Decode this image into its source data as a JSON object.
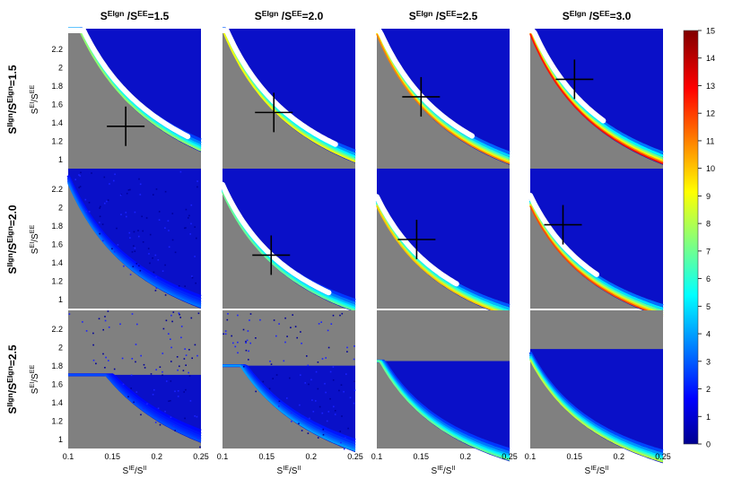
{
  "chart_data": {
    "type": "heatmap",
    "grid": {
      "rows": 3,
      "cols": 4
    },
    "column_titles": [
      {
        "base": "S",
        "sup": "EIgn",
        "mid": " /S",
        "sup2": "EE",
        "val": "=1.5"
      },
      {
        "base": "S",
        "sup": "EIgn",
        "mid": " /S",
        "sup2": "EE",
        "val": "=2.0"
      },
      {
        "base": "S",
        "sup": "EIgn",
        "mid": " /S",
        "sup2": "EE",
        "val": "=2.5"
      },
      {
        "base": "S",
        "sup": "EIgn",
        "mid": " /S",
        "sup2": "EE",
        "val": "=3.0"
      }
    ],
    "row_titles": [
      {
        "base": "S",
        "sup": "IIgn",
        "mid": "/S",
        "sup2": "EIgn",
        "val": "=1.5"
      },
      {
        "base": "S",
        "sup": "IIgn",
        "mid": "/S",
        "sup2": "EIgn",
        "val": "=2.0"
      },
      {
        "base": "S",
        "sup": "IIgn",
        "mid": "/S",
        "sup2": "EIgn",
        "val": "=2.5"
      }
    ],
    "xlabel": {
      "base": "S",
      "sup": "IE",
      "mid": "/S",
      "sup2": "II"
    },
    "ylabel": {
      "base": "S",
      "sup": "EI",
      "mid": "/S",
      "sup2": "EE"
    },
    "xlim": [
      0.1,
      0.25
    ],
    "ylim": [
      0.9,
      2.4
    ],
    "xticks": [
      "0.1",
      "0.15",
      "0.2",
      "0.25"
    ],
    "yticks": [
      "1",
      "1.2",
      "1.4",
      "1.6",
      "1.8",
      "2",
      "2.2"
    ],
    "colorbar": {
      "range": [
        0,
        15
      ],
      "ticks": [
        "0",
        "1",
        "2",
        "3",
        "4",
        "5",
        "6",
        "7",
        "8",
        "9",
        "10",
        "11",
        "12",
        "13",
        "14",
        "15"
      ],
      "colormap": "jet"
    },
    "colors": {
      "invalid": "#808080",
      "saturated": "#ffffff"
    },
    "panels": [
      {
        "row": 0,
        "col": 0,
        "boundary_k": 0.27,
        "mode": "full",
        "rim": 0.5,
        "white": 0.9,
        "marker": [
          0.165,
          1.36
        ]
      },
      {
        "row": 0,
        "col": 1,
        "boundary_k": 0.24,
        "mode": "full",
        "rim": 0.62,
        "white": 0.85,
        "marker": [
          0.158,
          1.51
        ]
      },
      {
        "row": 0,
        "col": 2,
        "boundary_k": 0.235,
        "mode": "full",
        "rim": 0.78,
        "white": 0.72,
        "marker": [
          0.15,
          1.68
        ]
      },
      {
        "row": 0,
        "col": 3,
        "boundary_k": 0.235,
        "mode": "full",
        "rim": 0.92,
        "white": 0.55,
        "marker": [
          0.15,
          1.87
        ]
      },
      {
        "row": 1,
        "col": 0,
        "boundary_k": 0.225,
        "mode": "full",
        "rim": 0.15,
        "white": 0,
        "scatter": true,
        "marker": null
      },
      {
        "row": 1,
        "col": 1,
        "boundary_k": 0.215,
        "mode": "full",
        "rim": 0.45,
        "white": 0.8,
        "marker": [
          0.155,
          1.48
        ]
      },
      {
        "row": 1,
        "col": 2,
        "boundary_k": 0.2,
        "mode": "full",
        "rim": 0.7,
        "white": 0.6,
        "marker": [
          0.145,
          1.65
        ]
      },
      {
        "row": 1,
        "col": 3,
        "boundary_k": 0.2,
        "mode": "full",
        "rim": 0.85,
        "white": 0.5,
        "marker": [
          0.137,
          1.81
        ]
      },
      {
        "row": 2,
        "col": 0,
        "boundary_k": 0.24,
        "mode": "band",
        "top": 1.7,
        "rim": 0.1,
        "white": 0,
        "scatter": true,
        "marker": null
      },
      {
        "row": 2,
        "col": 1,
        "boundary_k": 0.215,
        "mode": "band",
        "top": 1.8,
        "rim": 0.2,
        "white": 0,
        "scatter": true,
        "marker": null
      },
      {
        "row": 2,
        "col": 2,
        "boundary_k": 0.19,
        "mode": "band",
        "top": 1.85,
        "rim": 0.45,
        "white": 0,
        "scatter": false,
        "marker": null
      },
      {
        "row": 2,
        "col": 3,
        "boundary_k": 0.185,
        "mode": "band",
        "top": 1.98,
        "rim": 0.55,
        "white": 0,
        "scatter": false,
        "marker": null
      }
    ]
  }
}
